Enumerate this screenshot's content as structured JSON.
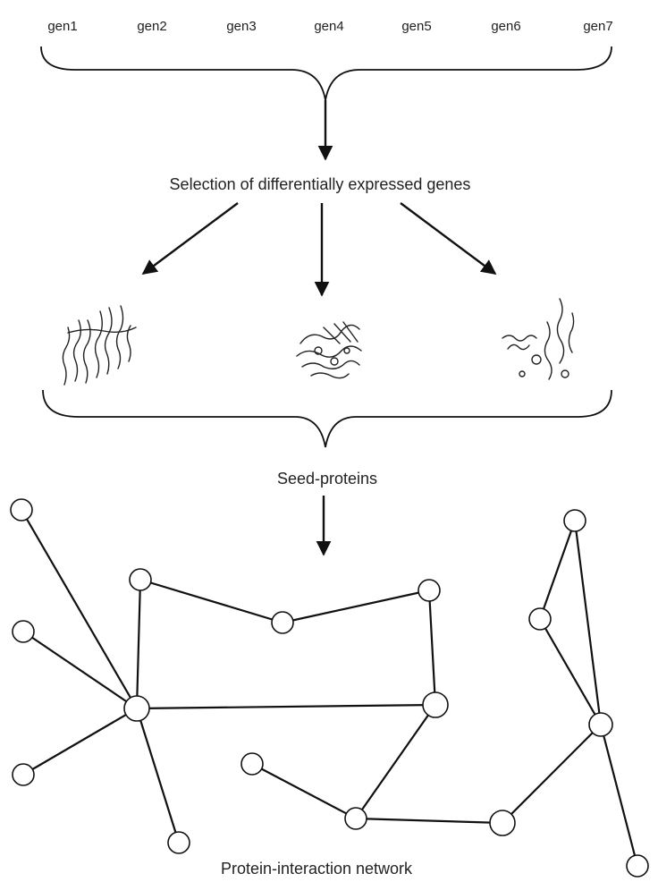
{
  "genes": [
    "gen1",
    "gen2",
    "gen3",
    "gen4",
    "gen5",
    "gen6",
    "gen7"
  ],
  "steps": {
    "selection": "Selection of differentially expressed genes",
    "seed": "Seed-proteins",
    "network": "Protein-interaction network"
  },
  "icons": [
    "protein-structure-icon",
    "protein-structure-icon",
    "protein-structure-icon"
  ]
}
